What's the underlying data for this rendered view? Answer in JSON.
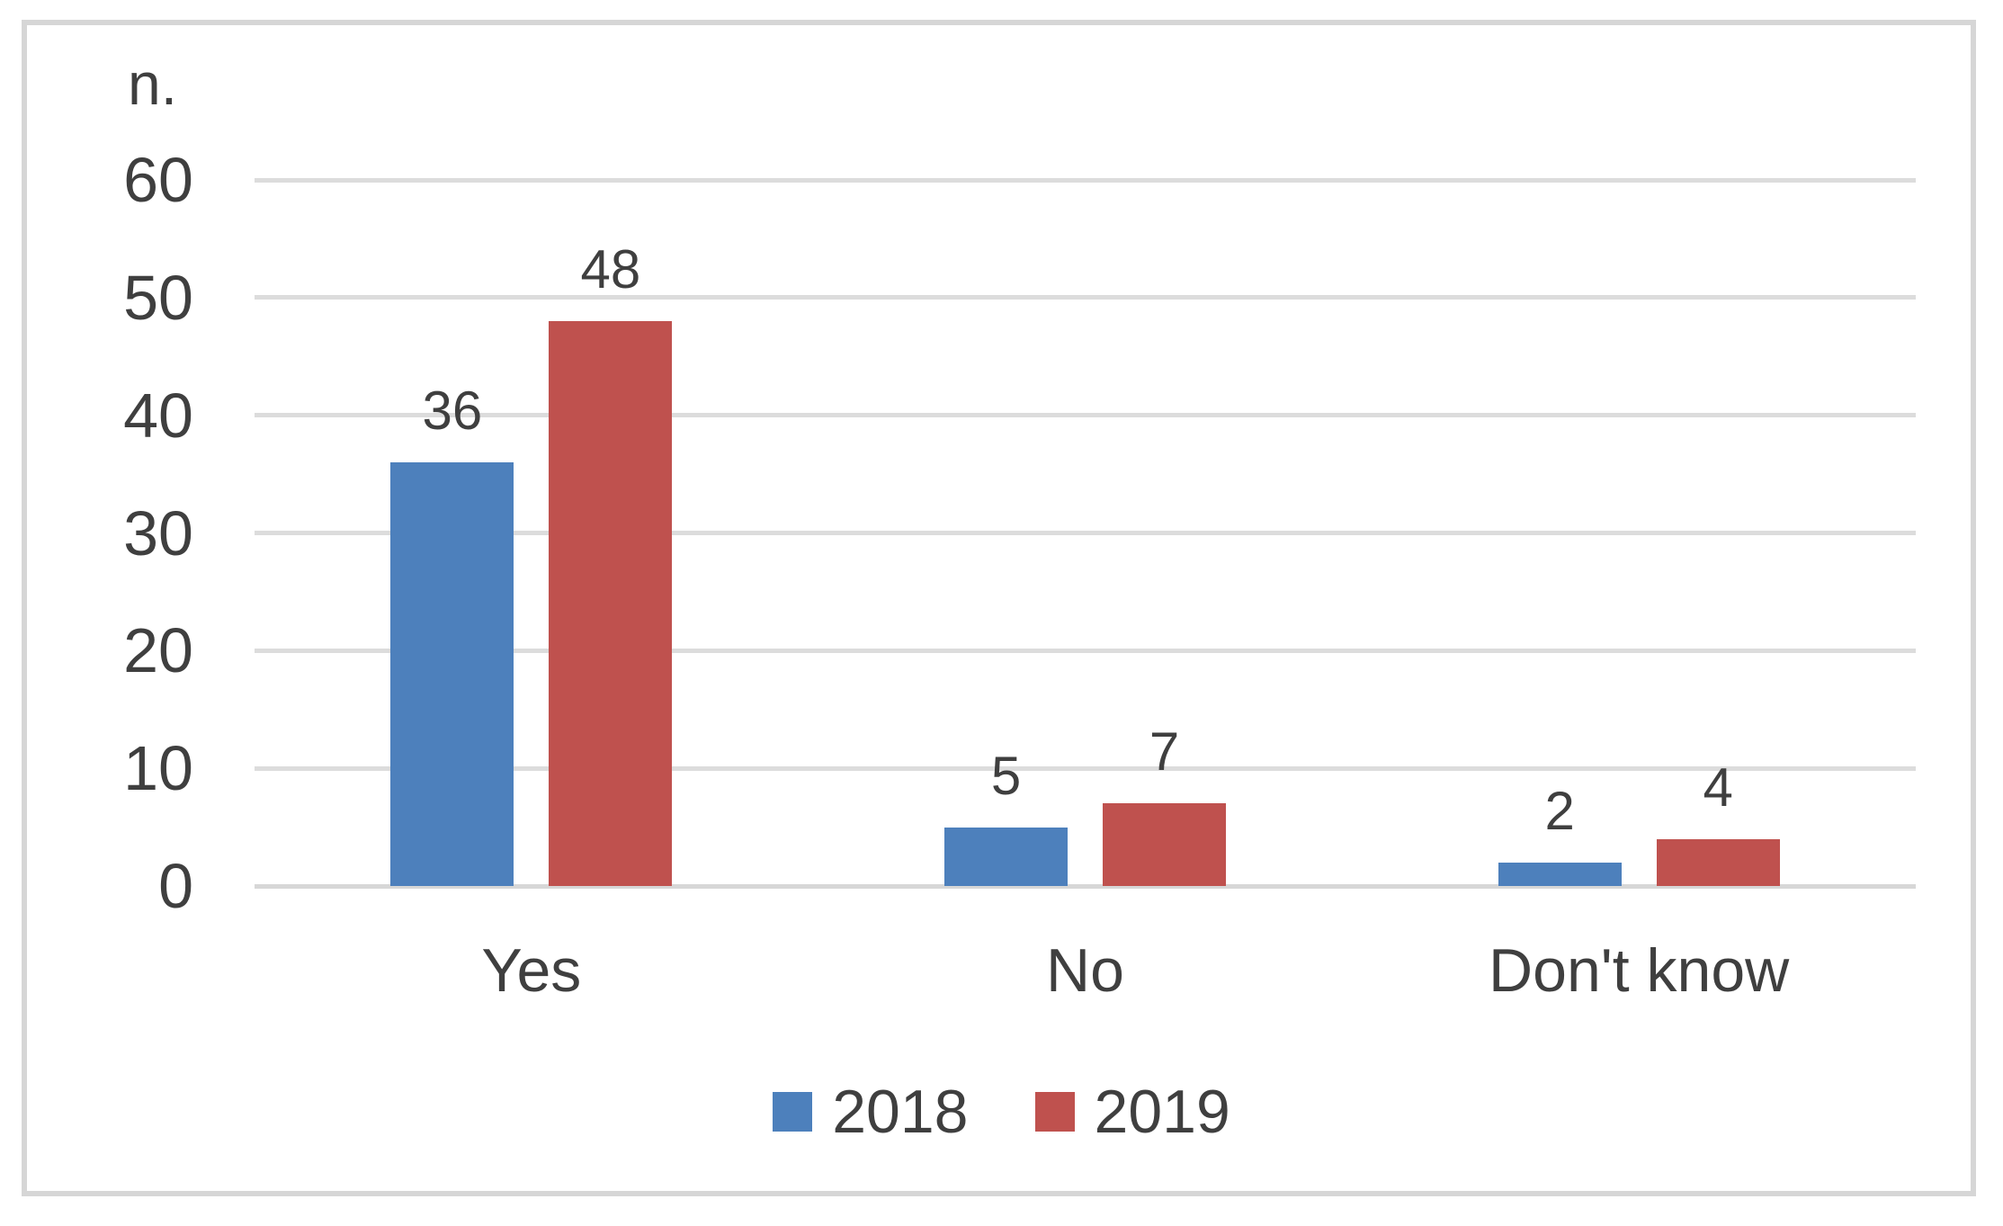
{
  "chart_data": {
    "type": "bar",
    "title": "",
    "xlabel": "",
    "ylabel": "n.",
    "categories": [
      "Yes",
      "No",
      "Don't know"
    ],
    "series": [
      {
        "name": "2018",
        "color": "#4d80bc",
        "values": [
          36,
          5,
          2
        ]
      },
      {
        "name": "2019",
        "color": "#bf514e",
        "values": [
          48,
          7,
          4
        ]
      }
    ],
    "ylim": [
      0,
      60
    ],
    "yticks": [
      0,
      10,
      20,
      30,
      40,
      50,
      60
    ],
    "grid": true,
    "data_labels": true,
    "legend_position": "bottom"
  },
  "colors": {
    "text": "#3f3f3f",
    "gridline": "#dcdcdc",
    "axis_line": "#d7d7d7",
    "frame_border": "#d6d6d6",
    "background": "#ffffff"
  }
}
